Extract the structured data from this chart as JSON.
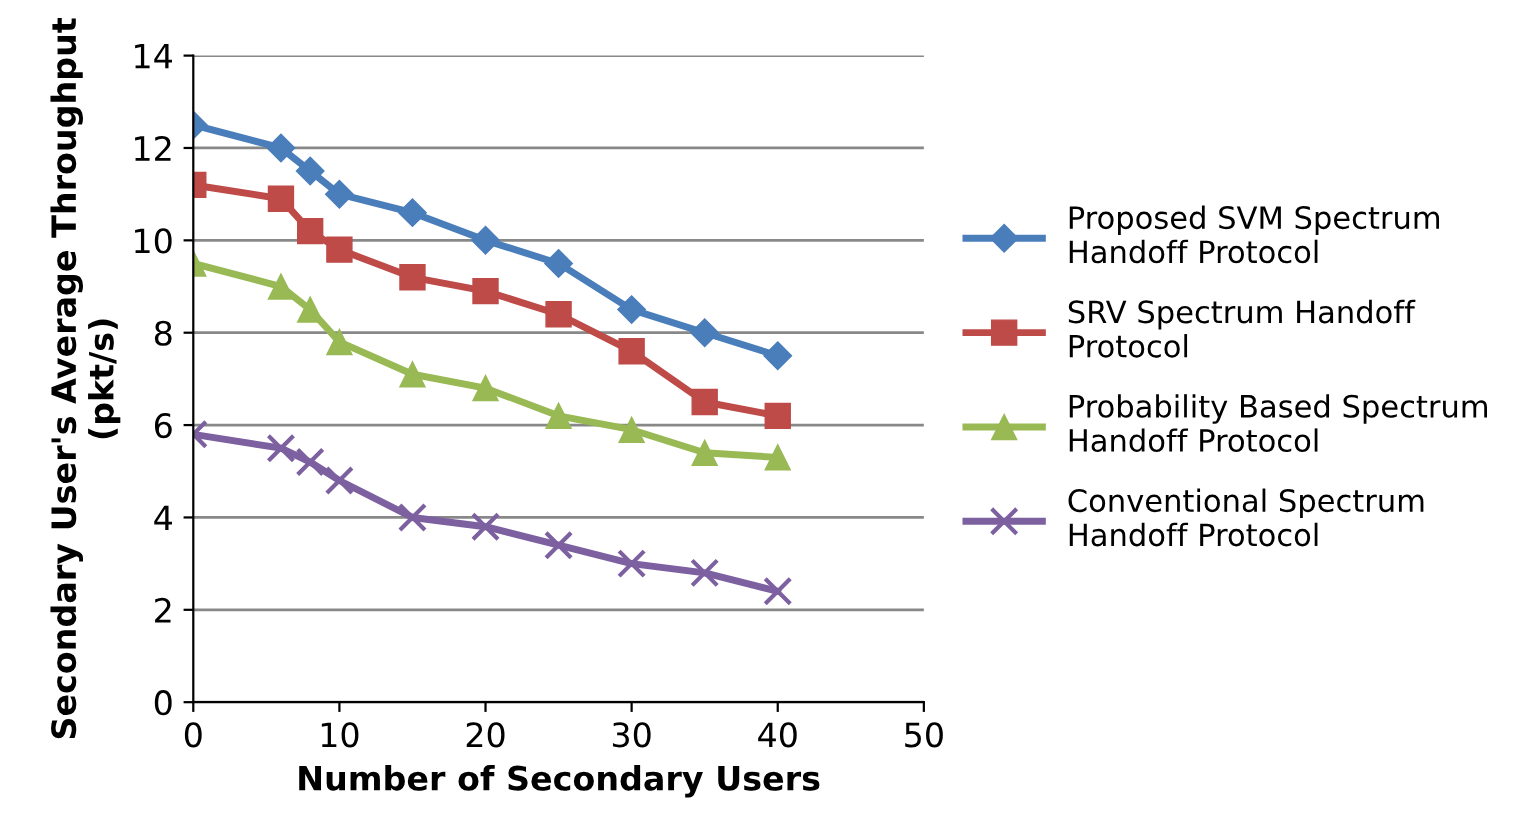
{
  "chart_data": {
    "type": "line",
    "xlabel": "Number of Secondary Users",
    "ylabel": "Secondary User's Average Throughput (pkt/s)",
    "x": [
      0,
      6,
      8,
      10,
      15,
      20,
      25,
      30,
      35,
      40
    ],
    "series": [
      {
        "name": "Proposed SVM Spectrum Handoff Protocol",
        "color": "#4a7ebb",
        "marker": "diamond",
        "values": [
          12.5,
          12,
          11.5,
          11,
          10.6,
          10,
          9.5,
          8.5,
          8,
          7.5
        ]
      },
      {
        "name": "SRV Spectrum Handoff Protocol",
        "color": "#be4b48",
        "marker": "square",
        "values": [
          11.2,
          10.9,
          10.2,
          9.8,
          9.2,
          8.9,
          8.4,
          7.6,
          6.5,
          6.2
        ]
      },
      {
        "name": "Probability Based Spectrum Handoff Protocol",
        "color": "#98b954",
        "marker": "triangle",
        "values": [
          9.5,
          9,
          8.5,
          7.8,
          7.1,
          6.8,
          6.2,
          5.9,
          5.4,
          5.3
        ]
      },
      {
        "name": "Conventional Spectrum Handoff Protocol",
        "color": "#7d60a0",
        "marker": "cross",
        "values": [
          5.8,
          5.5,
          5.2,
          4.8,
          4.0,
          3.8,
          3.4,
          3.0,
          2.8,
          2.4
        ]
      }
    ],
    "xlim": [
      0,
      50
    ],
    "xticks": [
      0,
      10,
      20,
      30,
      40,
      50
    ],
    "ylim": [
      0,
      14
    ],
    "yticks": [
      0,
      2,
      4,
      6,
      8,
      10,
      12,
      14
    ],
    "grid": "y",
    "legend": "right",
    "line_style": "solid"
  }
}
